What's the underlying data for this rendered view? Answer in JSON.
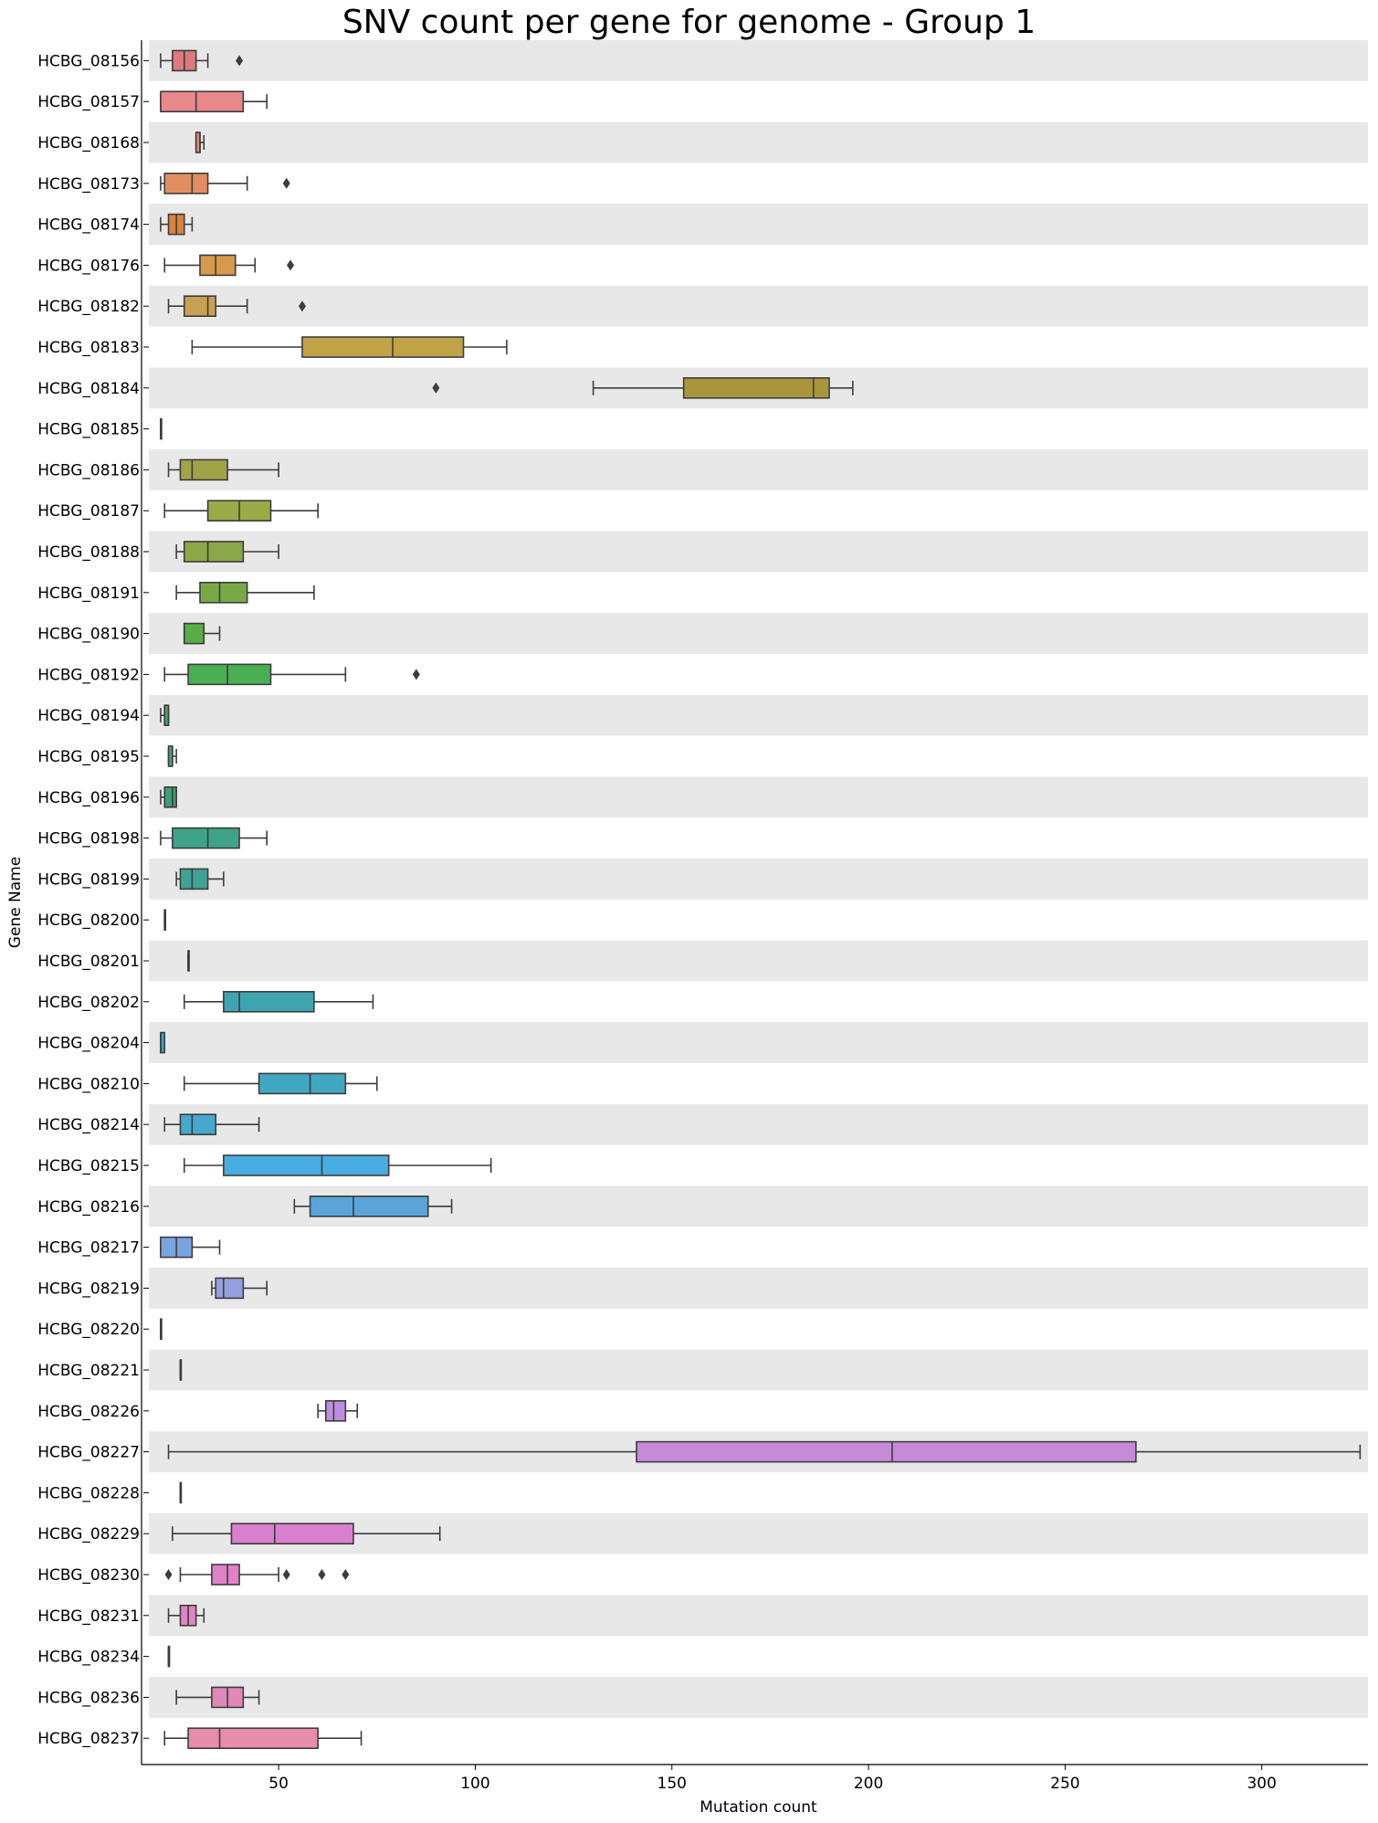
{
  "chart_data": {
    "type": "boxplot",
    "orientation": "horizontal",
    "title": "SNV count per gene for genome - Group 1",
    "xlabel": "Mutation count",
    "ylabel": "Gene Name",
    "xlim": [
      17,
      327
    ],
    "xticks": [
      50,
      100,
      150,
      200,
      250,
      300
    ],
    "row_shading": "alternating grey bands",
    "genes": [
      {
        "name": "HCBG_08156",
        "color": "#dd7a80",
        "whisker_low": 20,
        "q1": 23,
        "median": 26,
        "q3": 29,
        "whisker_high": 32,
        "outliers": [
          40
        ]
      },
      {
        "name": "HCBG_08157",
        "color": "#e8888a",
        "whisker_low": 20,
        "q1": 20,
        "median": 29,
        "q3": 41,
        "whisker_high": 47,
        "outliers": []
      },
      {
        "name": "HCBG_08168",
        "color": "#e48a7a",
        "whisker_low": 29,
        "q1": 29,
        "median": 30,
        "q3": 30,
        "whisker_high": 31,
        "outliers": []
      },
      {
        "name": "HCBG_08173",
        "color": "#e38d62",
        "whisker_low": 20,
        "q1": 21,
        "median": 28,
        "q3": 32,
        "whisker_high": 42,
        "outliers": [
          52
        ]
      },
      {
        "name": "HCBG_08174",
        "color": "#d9843c",
        "whisker_low": 20,
        "q1": 22,
        "median": 24,
        "q3": 26,
        "whisker_high": 28,
        "outliers": []
      },
      {
        "name": "HCBG_08176",
        "color": "#d69a4a",
        "whisker_low": 21,
        "q1": 30,
        "median": 34,
        "q3": 39,
        "whisker_high": 44,
        "outliers": [
          53
        ]
      },
      {
        "name": "HCBG_08182",
        "color": "#c8a053",
        "whisker_low": 22,
        "q1": 26,
        "median": 32,
        "q3": 34,
        "whisker_high": 42,
        "outliers": [
          56
        ]
      },
      {
        "name": "HCBG_08183",
        "color": "#c0a345",
        "whisker_low": 28,
        "q1": 56,
        "median": 79,
        "q3": 97,
        "whisker_high": 108,
        "outliers": []
      },
      {
        "name": "HCBG_08184",
        "color": "#a8963c",
        "whisker_low": 130,
        "q1": 153,
        "median": 186,
        "q3": 190,
        "whisker_high": 196,
        "outliers": [
          90
        ]
      },
      {
        "name": "HCBG_08185",
        "color": "#a0a240",
        "whisker_low": 20,
        "q1": 20,
        "median": 20,
        "q3": 20,
        "whisker_high": 20,
        "outliers": []
      },
      {
        "name": "HCBG_08186",
        "color": "#a0a447",
        "whisker_low": 22,
        "q1": 25,
        "median": 28,
        "q3": 37,
        "whisker_high": 50,
        "outliers": []
      },
      {
        "name": "HCBG_08187",
        "color": "#9aaa47",
        "whisker_low": 21,
        "q1": 32,
        "median": 40,
        "q3": 48,
        "whisker_high": 60,
        "outliers": []
      },
      {
        "name": "HCBG_08188",
        "color": "#8aa847",
        "whisker_low": 24,
        "q1": 26,
        "median": 32,
        "q3": 41,
        "whisker_high": 50,
        "outliers": []
      },
      {
        "name": "HCBG_08191",
        "color": "#77aa47",
        "whisker_low": 24,
        "q1": 30,
        "median": 35,
        "q3": 42,
        "whisker_high": 59,
        "outliers": []
      },
      {
        "name": "HCBG_08190",
        "color": "#58ad45",
        "whisker_low": 26,
        "q1": 26,
        "median": 26,
        "q3": 31,
        "whisker_high": 35,
        "outliers": []
      },
      {
        "name": "HCBG_08192",
        "color": "#4aaf52",
        "whisker_low": 21,
        "q1": 27,
        "median": 37,
        "q3": 48,
        "whisker_high": 67,
        "outliers": [
          85
        ]
      },
      {
        "name": "HCBG_08194",
        "color": "#3fa86a",
        "whisker_low": 20,
        "q1": 21,
        "median": 21,
        "q3": 22,
        "whisker_high": 22,
        "outliers": []
      },
      {
        "name": "HCBG_08195",
        "color": "#3ea87c",
        "whisker_low": 22,
        "q1": 22,
        "median": 23,
        "q3": 23,
        "whisker_high": 24,
        "outliers": []
      },
      {
        "name": "HCBG_08196",
        "color": "#3d9f76",
        "whisker_low": 20,
        "q1": 21,
        "median": 23,
        "q3": 24,
        "whisker_high": 24,
        "outliers": []
      },
      {
        "name": "HCBG_08198",
        "color": "#3fa388",
        "whisker_low": 20,
        "q1": 23,
        "median": 32,
        "q3": 40,
        "whisker_high": 47,
        "outliers": []
      },
      {
        "name": "HCBG_08199",
        "color": "#3fa393",
        "whisker_low": 24,
        "q1": 25,
        "median": 28,
        "q3": 32,
        "whisker_high": 36,
        "outliers": []
      },
      {
        "name": "HCBG_08200",
        "color": "#3fa3a3",
        "whisker_low": 21,
        "q1": 21,
        "median": 21,
        "q3": 21,
        "whisker_high": 21,
        "outliers": []
      },
      {
        "name": "HCBG_08201",
        "color": "#40a3ab",
        "whisker_low": 27,
        "q1": 27,
        "median": 27,
        "q3": 27,
        "whisker_high": 27,
        "outliers": []
      },
      {
        "name": "HCBG_08202",
        "color": "#3ea4b0",
        "whisker_low": 26,
        "q1": 36,
        "median": 40,
        "q3": 59,
        "whisker_high": 74,
        "outliers": []
      },
      {
        "name": "HCBG_08204",
        "color": "#3ea5b5",
        "whisker_low": 20,
        "q1": 20,
        "median": 20,
        "q3": 21,
        "whisker_high": 21,
        "outliers": []
      },
      {
        "name": "HCBG_08210",
        "color": "#41a8c2",
        "whisker_low": 26,
        "q1": 45,
        "median": 58,
        "q3": 67,
        "whisker_high": 75,
        "outliers": []
      },
      {
        "name": "HCBG_08214",
        "color": "#45a8cc",
        "whisker_low": 21,
        "q1": 25,
        "median": 28,
        "q3": 34,
        "whisker_high": 45,
        "outliers": []
      },
      {
        "name": "HCBG_08215",
        "color": "#48ade0",
        "whisker_low": 26,
        "q1": 36,
        "median": 61,
        "q3": 78,
        "whisker_high": 104,
        "outliers": []
      },
      {
        "name": "HCBG_08216",
        "color": "#5aa4d8",
        "whisker_low": 54,
        "q1": 58,
        "median": 69,
        "q3": 88,
        "whisker_high": 94,
        "outliers": []
      },
      {
        "name": "HCBG_08217",
        "color": "#7aa4e0",
        "whisker_low": 20,
        "q1": 20,
        "median": 24,
        "q3": 28,
        "whisker_high": 35,
        "outliers": []
      },
      {
        "name": "HCBG_08219",
        "color": "#959ede",
        "whisker_low": 33,
        "q1": 34,
        "median": 36,
        "q3": 41,
        "whisker_high": 47,
        "outliers": []
      },
      {
        "name": "HCBG_08220",
        "color": "#a498dc",
        "whisker_low": 20,
        "q1": 20,
        "median": 20,
        "q3": 20,
        "whisker_high": 20,
        "outliers": []
      },
      {
        "name": "HCBG_08221",
        "color": "#b196dc",
        "whisker_low": 25,
        "q1": 25,
        "median": 25,
        "q3": 25,
        "whisker_high": 25,
        "outliers": []
      },
      {
        "name": "HCBG_08226",
        "color": "#be8fde",
        "whisker_low": 60,
        "q1": 62,
        "median": 64,
        "q3": 67,
        "whisker_high": 70,
        "outliers": []
      },
      {
        "name": "HCBG_08227",
        "color": "#c68ad6",
        "whisker_low": 22,
        "q1": 141,
        "median": 206,
        "q3": 268,
        "whisker_high": 325,
        "outliers": []
      },
      {
        "name": "HCBG_08228",
        "color": "#cf85d4",
        "whisker_low": 25,
        "q1": 25,
        "median": 25,
        "q3": 25,
        "whisker_high": 25,
        "outliers": []
      },
      {
        "name": "HCBG_08229",
        "color": "#d97fce",
        "whisker_low": 23,
        "q1": 38,
        "median": 49,
        "q3": 69,
        "whisker_high": 91,
        "outliers": []
      },
      {
        "name": "HCBG_08230",
        "color": "#e080c8",
        "whisker_low": 25,
        "q1": 33,
        "median": 37,
        "q3": 40,
        "whisker_high": 50,
        "outliers": [
          22,
          52,
          61,
          67
        ]
      },
      {
        "name": "HCBG_08231",
        "color": "#e085c2",
        "whisker_low": 22,
        "q1": 25,
        "median": 27,
        "q3": 29,
        "whisker_high": 31,
        "outliers": []
      },
      {
        "name": "HCBG_08234",
        "color": "#e28ac0",
        "whisker_low": 22,
        "q1": 22,
        "median": 22,
        "q3": 22,
        "whisker_high": 22,
        "outliers": []
      },
      {
        "name": "HCBG_08236",
        "color": "#e088b8",
        "whisker_low": 24,
        "q1": 33,
        "median": 37,
        "q3": 41,
        "whisker_high": 45,
        "outliers": []
      },
      {
        "name": "HCBG_08237",
        "color": "#e88cab",
        "whisker_low": 21,
        "q1": 27,
        "median": 35,
        "q3": 60,
        "whisker_high": 71,
        "outliers": []
      }
    ]
  }
}
